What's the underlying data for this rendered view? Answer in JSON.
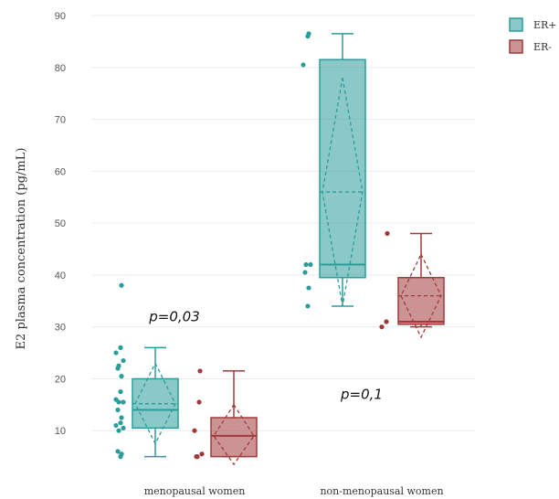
{
  "chart_data": {
    "type": "box",
    "ylabel": "E2 plasma concentration (pg/mL)",
    "ylim": [
      0,
      90
    ],
    "yticks": [
      10,
      20,
      30,
      40,
      50,
      60,
      70,
      80,
      90
    ],
    "grid": true,
    "legend_position": "top-right",
    "categories": [
      "menopausal women",
      "non-menopausal women"
    ],
    "colors": {
      "ER+": "#2a9d9a",
      "ER-": "#a03a3a"
    },
    "series": [
      {
        "name": "ER+",
        "color": "#2a9d9a",
        "boxes": [
          {
            "category": "menopausal women",
            "whisker_low": 5,
            "q1": 10.5,
            "median": 14,
            "q3": 20,
            "whisker_high": 26,
            "mean": 15.2,
            "mean_ci": [
              7.5,
              23
            ],
            "points": [
              38,
              26,
              25,
              23.5,
              22.5,
              22,
              20.5,
              17.5,
              16,
              15.5,
              15.5,
              14,
              12.5,
              11.5,
              11,
              10.5,
              10,
              6,
              5.5,
              5
            ]
          },
          {
            "category": "non-menopausal women",
            "whisker_low": 34,
            "q1": 39.5,
            "median": 42,
            "q3": 81.5,
            "whisker_high": 86.5,
            "mean": 56,
            "mean_ci": [
              34,
              78
            ],
            "points": [
              86.5,
              86,
              80.5,
              42,
              42,
              40.5,
              37.5,
              34
            ]
          }
        ]
      },
      {
        "name": "ER-",
        "color": "#a03a3a",
        "boxes": [
          {
            "category": "menopausal women",
            "whisker_low": 5,
            "q1": 5,
            "median": 9,
            "q3": 12.5,
            "whisker_high": 21.5,
            "mean": 9,
            "mean_ci": [
              3.5,
              15
            ],
            "points": [
              21.5,
              15.5,
              10,
              5.5,
              5,
              5
            ]
          },
          {
            "category": "non-menopausal women",
            "whisker_low": 30,
            "q1": 30.5,
            "median": 31,
            "q3": 39.5,
            "whisker_high": 48,
            "mean": 36,
            "mean_ci": [
              28,
              44
            ],
            "points": [
              48,
              31,
              30
            ]
          }
        ]
      }
    ],
    "annotations": [
      {
        "text": "p=0,03",
        "category": "menopausal women",
        "y": 32
      },
      {
        "text": "p=0,1",
        "category": "non-menopausal women",
        "y": 17
      }
    ]
  }
}
